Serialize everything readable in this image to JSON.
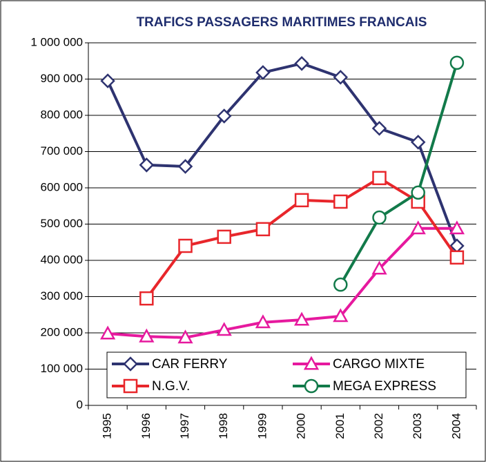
{
  "chart_data": {
    "type": "line",
    "title": "TRAFICS PASSAGERS MARITIMES FRANCAIS",
    "categories": [
      "1995",
      "1996",
      "1997",
      "1998",
      "1999",
      "2000",
      "2001",
      "2002",
      "2003",
      "2004"
    ],
    "series": [
      {
        "name": "CAR FERRY",
        "color": "#2e3370",
        "marker": "diamond",
        "values": [
          895000,
          663000,
          659000,
          798000,
          918000,
          943000,
          905000,
          764000,
          726000,
          440000
        ]
      },
      {
        "name": "CARGO MIXTE",
        "color": "#e6199e",
        "marker": "triangle",
        "values": [
          198000,
          190000,
          187000,
          208000,
          229000,
          236000,
          246000,
          377000,
          488000,
          488000
        ]
      },
      {
        "name": "N.G.V.",
        "color": "#e8262b",
        "marker": "square",
        "values": [
          null,
          295000,
          440000,
          465000,
          486000,
          566000,
          562000,
          627000,
          562000,
          408000
        ]
      },
      {
        "name": "MEGA EXPRESS",
        "color": "#127a4a",
        "marker": "circle",
        "values": [
          null,
          null,
          null,
          null,
          null,
          null,
          333000,
          518000,
          587000,
          945000
        ]
      }
    ],
    "ylim": [
      0,
      1000000
    ],
    "yticks": [
      0,
      {
        "value": 100000,
        "label": "100 000"
      },
      {
        "value": 200000,
        "label": "200 000"
      },
      {
        "value": 300000,
        "label": "300 000"
      },
      {
        "value": 400000,
        "label": "400 000"
      },
      {
        "value": 500000,
        "label": "500 000"
      },
      {
        "value": 600000,
        "label": "600 000"
      },
      {
        "value": 700000,
        "label": "700 000"
      },
      {
        "value": 800000,
        "label": "800 000"
      },
      {
        "value": 900000,
        "label": "900 000"
      },
      {
        "value": 1000000,
        "label": "1 000 000"
      }
    ],
    "grid": true
  }
}
